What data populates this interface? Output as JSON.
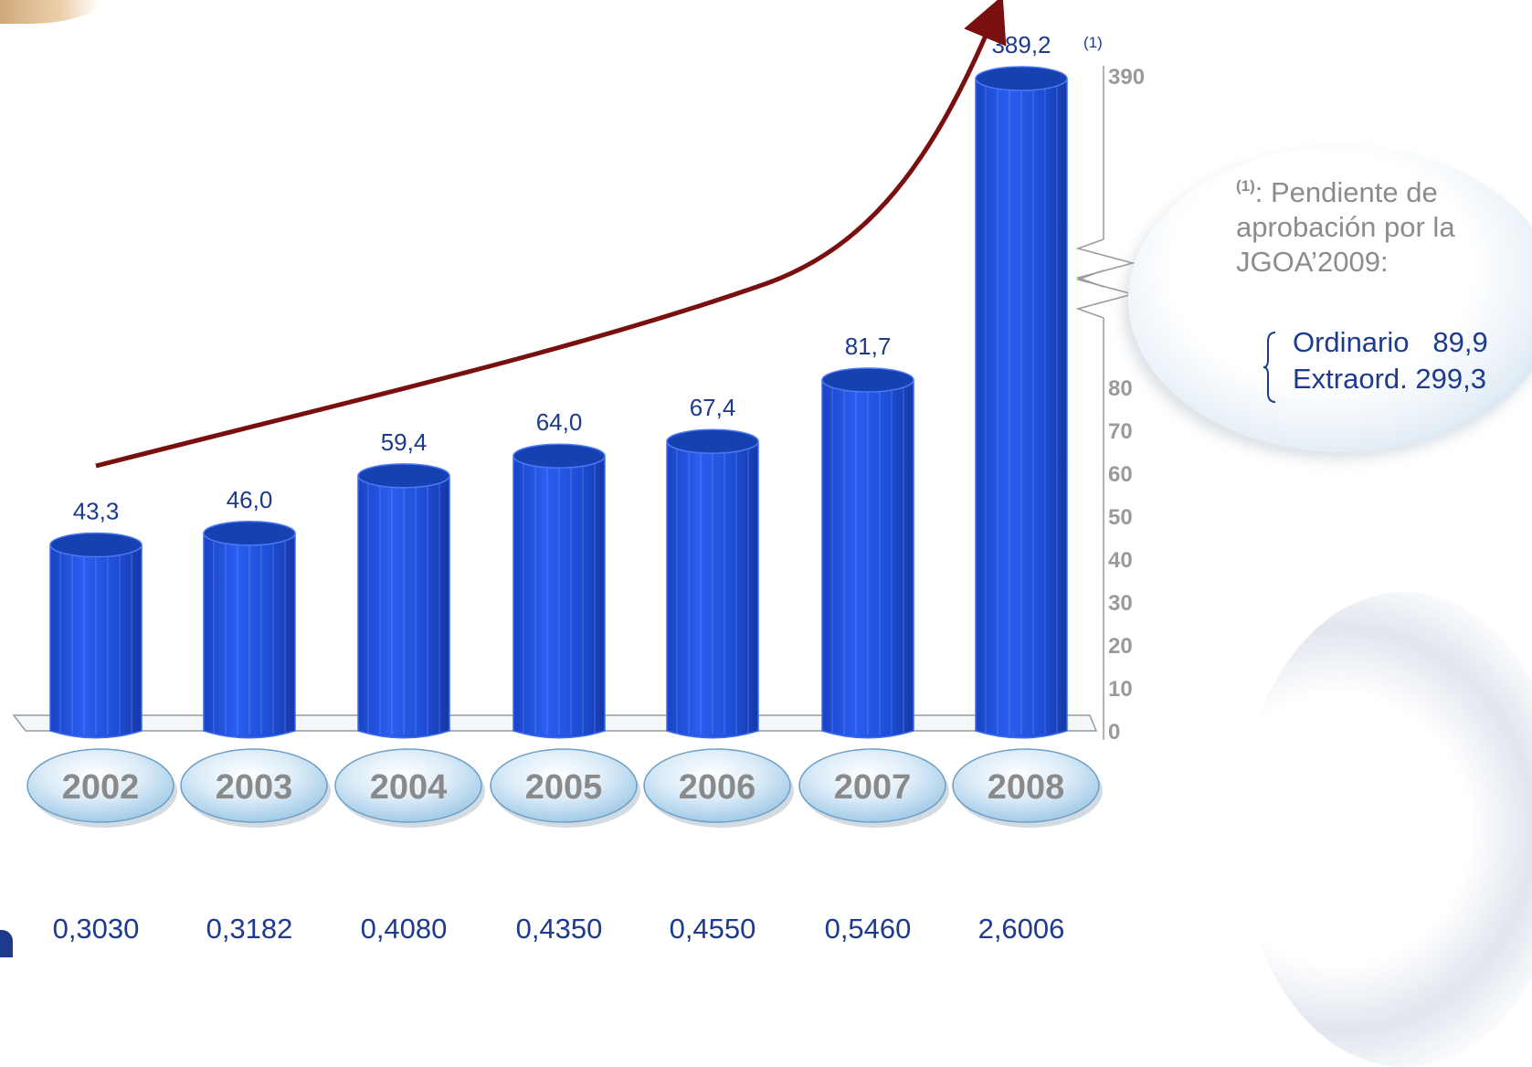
{
  "chart_data": {
    "type": "bar",
    "title": "",
    "xlabel": "",
    "ylabel": "",
    "categories": [
      "2002",
      "2003",
      "2004",
      "2005",
      "2006",
      "2007",
      "2008"
    ],
    "series": [
      {
        "values": [
          43.3,
          46.0,
          59.4,
          64.0,
          67.4,
          81.7,
          389.2
        ],
        "value_labels": [
          "43,3",
          "46,0",
          "59,4",
          "64,0",
          "67,4",
          "81,7",
          "389,2"
        ],
        "color": "#1f4fd8"
      }
    ],
    "secondary_row": [
      "0,3030",
      "0,3182",
      "0,4080",
      "0,4350",
      "0,4550",
      "0,5460",
      "2,6006"
    ],
    "yaxis": {
      "ticks": [
        "0",
        "10",
        "20",
        "30",
        "40",
        "50",
        "60",
        "70",
        "80"
      ],
      "tick_values": [
        0,
        10,
        20,
        30,
        40,
        50,
        60,
        70,
        80
      ],
      "break_top_tick": "390",
      "break_top_value": 390,
      "lower_range": [
        0,
        80
      ],
      "axis_break": true,
      "position": "right"
    },
    "annotation_marker": "(1)",
    "trend_arrow": true,
    "grid": false,
    "legend": "none"
  },
  "note": {
    "marker": "(1)",
    "line1": ": Pendiente de",
    "line2": "aprobación por la",
    "line3": "JGOA’2009:",
    "breakdown": [
      {
        "label": "Ordinario",
        "value": "89,9"
      },
      {
        "label": "Extraord.",
        "value": "299,3"
      }
    ]
  },
  "colors": {
    "bar": "#1f4fd8",
    "bar_top": "#1641b0",
    "arrow": "#7a0f0f",
    "text_values": "#1d3a8c",
    "text_ticks": "#9a9a9a"
  }
}
